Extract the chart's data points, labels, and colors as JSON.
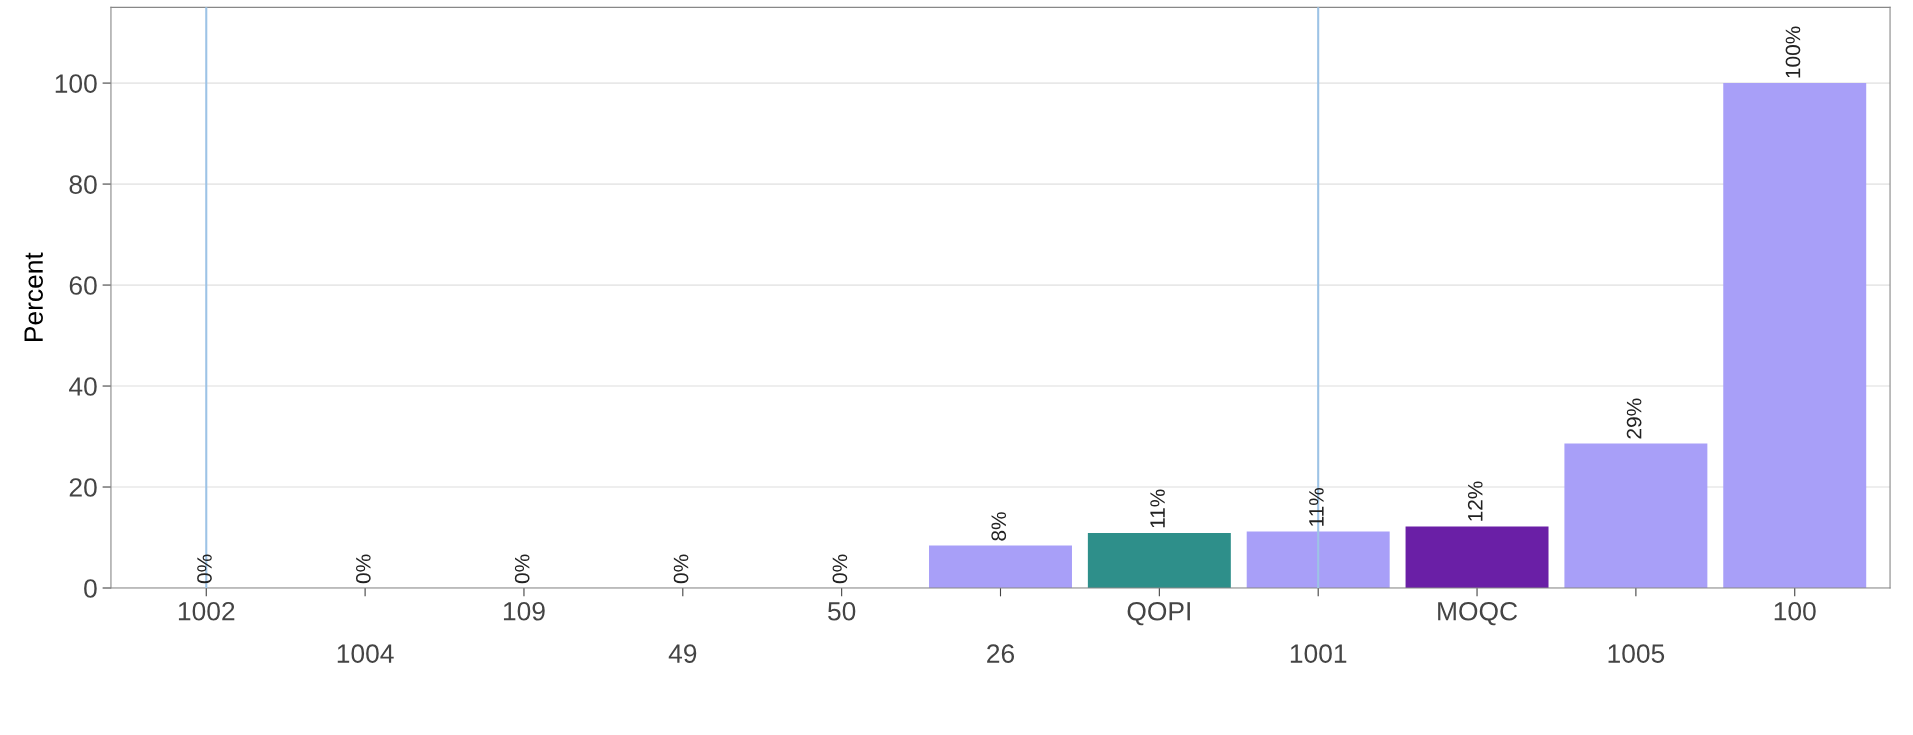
{
  "chart_data": {
    "type": "bar",
    "ylabel": "Percent",
    "categories": [
      "1002",
      "1004",
      "109",
      "49",
      "50",
      "26",
      "QOPI",
      "1001",
      "MOQC",
      "1005",
      "100"
    ],
    "values": [
      0,
      0,
      0,
      0,
      0,
      8.4,
      10.9,
      11.2,
      12.2,
      28.6,
      100
    ],
    "colors": [
      "#a89ff8",
      "#a89ff8",
      "#a89ff8",
      "#a89ff8",
      "#a89ff8",
      "#a89ff8",
      "#2e8f8a",
      "#a89ff8",
      "#6a1fa6",
      "#a89ff8",
      "#a89ff8"
    ],
    "value_labels": [
      "0%",
      "0%",
      "0%",
      "0%",
      "0%",
      "8%",
      "11%",
      "11%",
      "12%",
      "29%",
      "100%"
    ],
    "ylim": [
      0,
      115
    ],
    "yticks": [
      0,
      20,
      40,
      60,
      80,
      100
    ],
    "grid": "y",
    "ref_lines": [
      {
        "axis": "x",
        "value": "1002",
        "color": "#9dc3e6"
      },
      {
        "axis": "x",
        "value": "1001",
        "color": "#9dc3e6"
      }
    ]
  }
}
